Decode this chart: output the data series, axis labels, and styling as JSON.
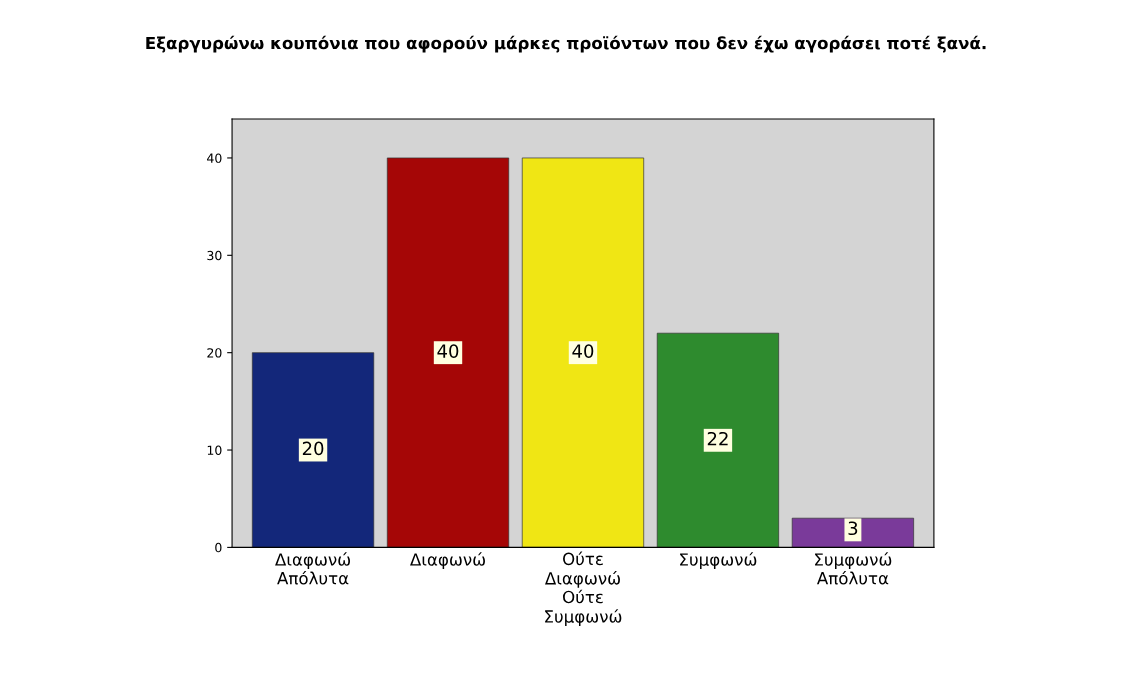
{
  "chart_data": {
    "type": "bar",
    "title": "Εξαργυρώνω κουπόνια που αφορούν μάρκες προϊόντων που δεν έχω αγοράσει ποτέ ξανά.",
    "categories": [
      "Διαφωνώ\nΑπόλυτα",
      "Διαφωνώ",
      "Ούτε\nΔιαφωνώ\nΟύτε\nΣυμφωνώ",
      "Συμφωνώ",
      "Συμφωνώ\nΑπόλυτα"
    ],
    "values": [
      20,
      40,
      40,
      22,
      3
    ],
    "colors": [
      "#13277a",
      "#a50606",
      "#f0e614",
      "#2e8b2e",
      "#7a3a9a"
    ],
    "ylim": [
      0,
      44
    ],
    "yticks": [
      0,
      10,
      20,
      30,
      40
    ],
    "grid": false,
    "data_labels": true
  }
}
